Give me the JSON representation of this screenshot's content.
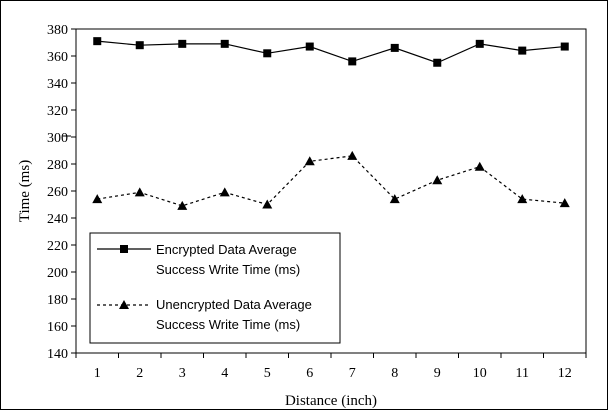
{
  "chart_data": {
    "type": "line",
    "x": [
      1,
      2,
      3,
      4,
      5,
      6,
      7,
      8,
      9,
      10,
      11,
      12
    ],
    "xlabel": "Distance (inch)",
    "ylabel": "Time (ms)",
    "ylim": [
      140,
      380
    ],
    "yticks": [
      140,
      160,
      180,
      200,
      220,
      240,
      260,
      280,
      300,
      320,
      340,
      360,
      380
    ],
    "grid": false,
    "legend_placement": "lower-left",
    "series": [
      {
        "name_line1": "Encrypted Data Average",
        "name_line2": "Success Write Time (ms)",
        "marker": "square",
        "line_style": "solid",
        "color": "#000000",
        "values": [
          371,
          368,
          369,
          369,
          362,
          367,
          356,
          366,
          355,
          369,
          364,
          367
        ]
      },
      {
        "name_line1": "Unencrypted Data Average",
        "name_line2": "Success Write Time (ms)",
        "marker": "triangle",
        "line_style": "dotted",
        "color": "#000000",
        "values": [
          254,
          259,
          249,
          259,
          250,
          282,
          286,
          254,
          268,
          278,
          254,
          251
        ]
      }
    ]
  }
}
